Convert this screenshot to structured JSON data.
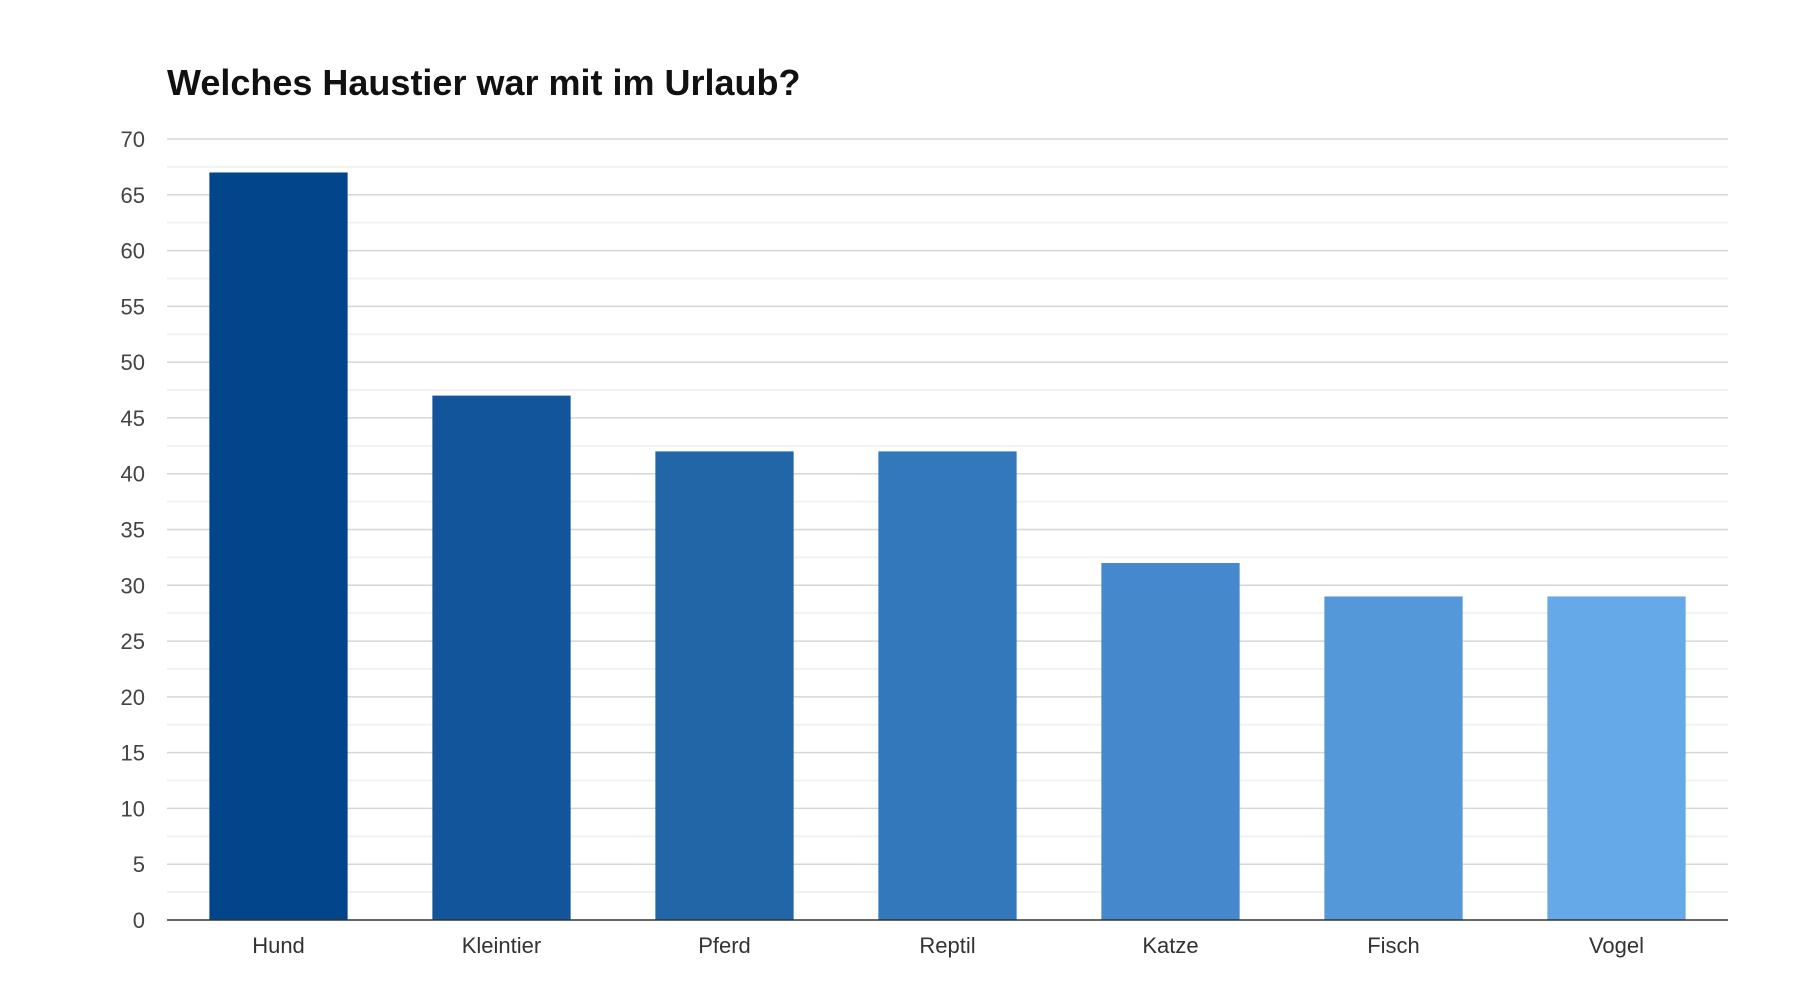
{
  "chart_data": {
    "type": "bar",
    "title": "Welches Haustier war mit im Urlaub?",
    "categories": [
      "Hund",
      "Kleintier",
      "Pferd",
      "Reptil",
      "Katze",
      "Fisch",
      "Vogel"
    ],
    "values": [
      67,
      47,
      42,
      42,
      32,
      29,
      29
    ],
    "colors": [
      "#03458a",
      "#12559a",
      "#2266a8",
      "#3378bb",
      "#4589cc",
      "#5498da",
      "#65a9e8"
    ],
    "xlabel": "",
    "ylabel": "",
    "ylim": [
      0,
      70
    ],
    "yticks": [
      "0",
      "5",
      "10",
      "15",
      "20",
      "25",
      "30",
      "35",
      "40",
      "45",
      "50",
      "55",
      "60",
      "65",
      "70"
    ],
    "grid": true,
    "legend": "none"
  }
}
